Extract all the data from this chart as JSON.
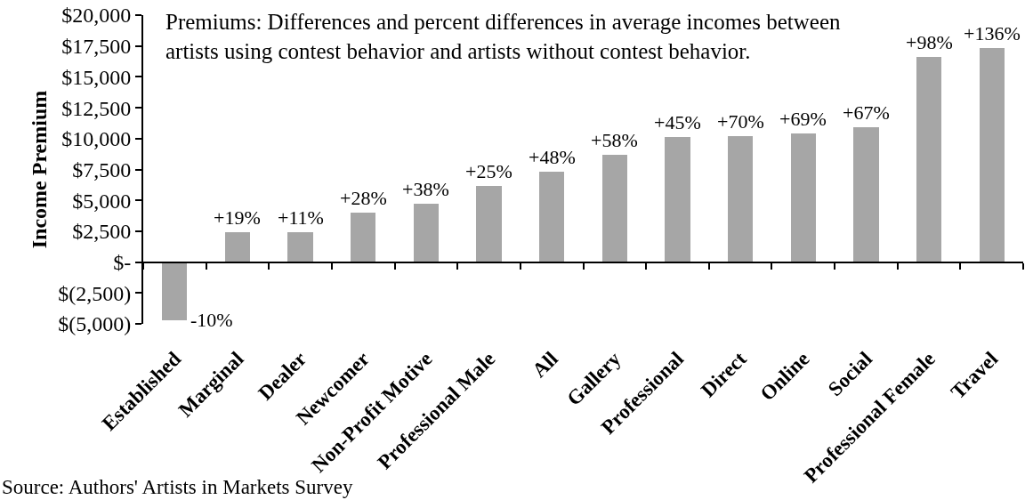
{
  "chart_data": {
    "type": "bar",
    "title": "Premiums: Differences and percent differences in average incomes between artists using contest behavior and artists without contest behavior.",
    "ylabel": "Income Premium",
    "categories": [
      "Established",
      "Marginal",
      "Dealer",
      "Newcomer",
      "Non-Profit Motive",
      "Professional Male",
      "All",
      "Gallery",
      "Professional",
      "Direct",
      "Online",
      "Social",
      "Professional Female",
      "Travel"
    ],
    "values": [
      -4700,
      2400,
      2400,
      4000,
      4700,
      6200,
      7300,
      8700,
      10100,
      10200,
      10400,
      10900,
      16600,
      17300
    ],
    "color": "#a6a6a6",
    "ylim": [
      -5000,
      20000
    ],
    "yticks": [
      {
        "value": 20000,
        "label": "$20,000"
      },
      {
        "value": 17500,
        "label": "$17,500"
      },
      {
        "value": 15000,
        "label": "$15,000"
      },
      {
        "value": 12500,
        "label": "$12,500"
      },
      {
        "value": 10000,
        "label": "$10,000"
      },
      {
        "value": 7500,
        "label": "$7,500"
      },
      {
        "value": 5000,
        "label": "$5,000"
      },
      {
        "value": 2500,
        "label": "$2,500"
      },
      {
        "value": 0,
        "label": "$-"
      },
      {
        "value": -2500,
        "label": "$(2,500)"
      },
      {
        "value": -5000,
        "label": "$(5,000)"
      }
    ],
    "annotations": [
      {
        "text": "-10%",
        "x": "Established",
        "y": -4700
      },
      {
        "text": "+19%",
        "x": "Marginal",
        "y": 2400
      },
      {
        "text": "+11%",
        "x": "Dealer",
        "y": 2400
      },
      {
        "text": "+28%",
        "x": "Newcomer",
        "y": 4000
      },
      {
        "text": "+38%",
        "x": "Non-Profit Motive",
        "y": 4700
      },
      {
        "text": "+25%",
        "x": "Professional Male",
        "y": 6200
      },
      {
        "text": "+48%",
        "x": "All",
        "y": 7300
      },
      {
        "text": "+58%",
        "x": "Gallery",
        "y": 8700
      },
      {
        "text": "+45%",
        "x": "Professional",
        "y": 10100
      },
      {
        "text": "+70%",
        "x": "Direct",
        "y": 10200
      },
      {
        "text": "+69%",
        "x": "Online",
        "y": 10400
      },
      {
        "text": "+67%",
        "x": "Social",
        "y": 10900
      },
      {
        "text": "+98%",
        "x": "Professional Female",
        "y": 16600
      },
      {
        "text": "+136%",
        "x": "Travel",
        "y": 17300
      },
      "Source: Authors' Artists in Markets Survey"
    ]
  }
}
